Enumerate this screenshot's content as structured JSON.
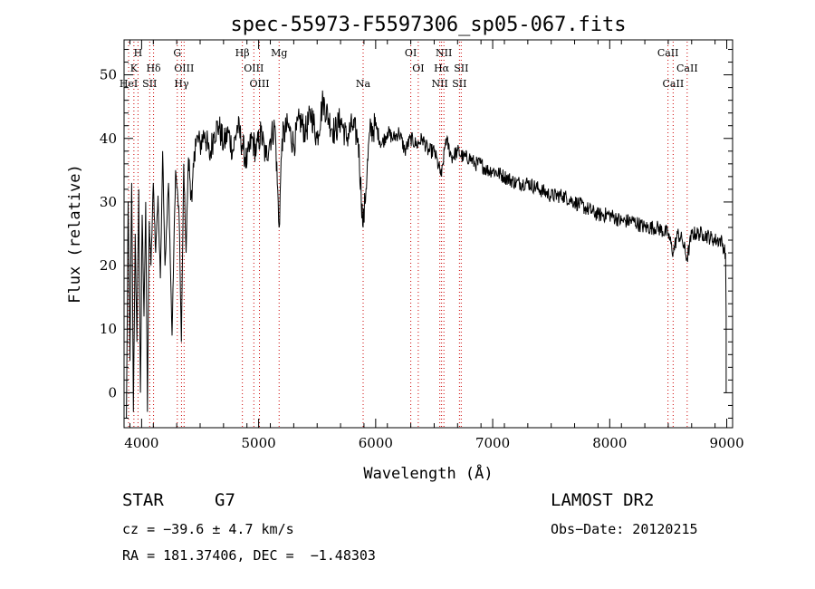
{
  "chart_data": {
    "type": "line",
    "title": "spec-55973-F5597306_sp05-067.fits",
    "xlabel": "Wavelength (Å)",
    "ylabel": "Flux (relative)",
    "xlim": [
      3850,
      9050
    ],
    "ylim": [
      -5.5,
      55.5
    ],
    "xticks": [
      4000,
      5000,
      6000,
      7000,
      8000,
      9000
    ],
    "yticks": [
      0,
      10,
      20,
      30,
      40,
      50
    ],
    "grid": false,
    "line_color": "#000000",
    "marker_color": "#cc0000",
    "series": [
      {
        "x": [
          3870,
          3885,
          3900,
          3915,
          3930,
          3945,
          3960,
          3975,
          3990,
          4005,
          4020,
          4035,
          4050,
          4065,
          4080,
          4100,
          4120,
          4140,
          4160,
          4180,
          4200,
          4230,
          4260,
          4290,
          4320,
          4340,
          4360,
          4380,
          4400,
          4430,
          4460,
          4500,
          4540,
          4580,
          4620,
          4660,
          4700,
          4740,
          4780,
          4820,
          4861,
          4900,
          4940,
          4980,
          5020,
          5060,
          5100,
          5140,
          5175,
          5200,
          5250,
          5300,
          5350,
          5400,
          5450,
          5500,
          5550,
          5600,
          5650,
          5700,
          5750,
          5800,
          5850,
          5893,
          5950,
          6000,
          6050,
          6100,
          6150,
          6200,
          6250,
          6300,
          6350,
          6400,
          6450,
          6500,
          6563,
          6600,
          6650,
          6700,
          6750,
          6800,
          6850,
          6900,
          6950,
          7000,
          7100,
          7200,
          7300,
          7400,
          7500,
          7600,
          7700,
          7800,
          7900,
          8000,
          8100,
          8200,
          8300,
          8400,
          8500,
          8542,
          8580,
          8620,
          8662,
          8700,
          8800,
          8900,
          8950,
          8990
        ],
        "y": [
          -4,
          30,
          5,
          33,
          -3,
          25,
          8,
          32,
          0,
          28,
          12,
          30,
          -3,
          27,
          20,
          33,
          22,
          31,
          18,
          38,
          20,
          33,
          9,
          35,
          28,
          8,
          36,
          22,
          37,
          30,
          40,
          39,
          41,
          37,
          41,
          42,
          39,
          41,
          38,
          42,
          39,
          36,
          40,
          38,
          41,
          37,
          40,
          42,
          26,
          40,
          42,
          39,
          43,
          41,
          44,
          40,
          46,
          43,
          41,
          43,
          40,
          42,
          40,
          26,
          41,
          42,
          39,
          41,
          40,
          41,
          38,
          40,
          39,
          40,
          38,
          38,
          34,
          40,
          37,
          38,
          37,
          37,
          36,
          36,
          35,
          35,
          34,
          33,
          33,
          32,
          31,
          31,
          30,
          29,
          28,
          28,
          27,
          27,
          26,
          26,
          25,
          22,
          25,
          24,
          21,
          25,
          25,
          24,
          24,
          22
        ]
      }
    ],
    "spectral_lines": [
      {
        "label": "H",
        "wavelength": 3969,
        "row": 0
      },
      {
        "label": "K",
        "wavelength": 3934,
        "row": 1
      },
      {
        "label": "HeI",
        "wavelength": 3889,
        "row": 2
      },
      {
        "label": "Hδ",
        "wavelength": 4102,
        "row": 1
      },
      {
        "label": "SII",
        "wavelength": 4069,
        "row": 2
      },
      {
        "label": "G",
        "wavelength": 4305,
        "row": 0
      },
      {
        "label": "OIII",
        "wavelength": 4363,
        "row": 1
      },
      {
        "label": "Hγ",
        "wavelength": 4341,
        "row": 2
      },
      {
        "label": "Hβ",
        "wavelength": 4861,
        "row": 0
      },
      {
        "label": "OIII",
        "wavelength": 4959,
        "row": 1
      },
      {
        "label": "OIII",
        "wavelength": 5007,
        "row": 2
      },
      {
        "label": "Mg",
        "wavelength": 5175,
        "row": 0
      },
      {
        "label": "Na",
        "wavelength": 5893,
        "row": 2
      },
      {
        "label": "OI",
        "wavelength": 6300,
        "row": 0
      },
      {
        "label": "OI",
        "wavelength": 6364,
        "row": 1
      },
      {
        "label": "NII",
        "wavelength": 6583,
        "row": 0
      },
      {
        "label": "Hα",
        "wavelength": 6563,
        "row": 1
      },
      {
        "label": "SII",
        "wavelength": 6731,
        "row": 1
      },
      {
        "label": "NII",
        "wavelength": 6548,
        "row": 2
      },
      {
        "label": "SII",
        "wavelength": 6716,
        "row": 2
      },
      {
        "label": "CaII",
        "wavelength": 8498,
        "row": 0
      },
      {
        "label": "CaII",
        "wavelength": 8662,
        "row": 1
      },
      {
        "label": "CaII",
        "wavelength": 8542,
        "row": 2
      }
    ]
  },
  "info": {
    "class_label": "STAR",
    "subclass": "G7",
    "survey": "LAMOST DR2",
    "cz": "cz = −39.6 ± 4.7 km/s",
    "obs_date": "Obs−Date: 20120215",
    "radec": "RA = 181.37406, DEC =  −1.48303"
  }
}
